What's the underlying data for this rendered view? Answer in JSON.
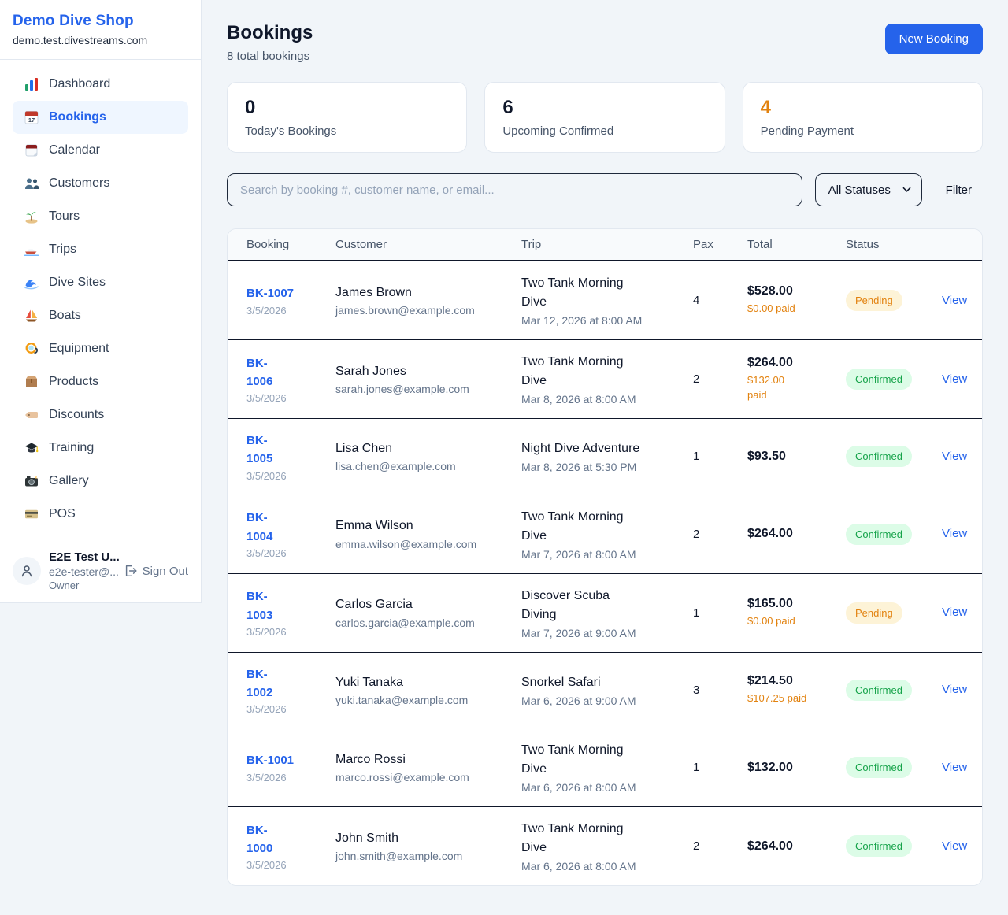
{
  "sidebar": {
    "shop_name": "Demo Dive Shop",
    "shop_domain": "demo.test.divestreams.com",
    "items": [
      {
        "label": "Dashboard",
        "icon": "bar-chart-icon",
        "active": false
      },
      {
        "label": "Bookings",
        "icon": "calendar-17-icon",
        "active": true
      },
      {
        "label": "Calendar",
        "icon": "tear-calendar-icon",
        "active": false
      },
      {
        "label": "Customers",
        "icon": "people-icon",
        "active": false
      },
      {
        "label": "Tours",
        "icon": "island-icon",
        "active": false
      },
      {
        "label": "Trips",
        "icon": "speedboat-icon",
        "active": false
      },
      {
        "label": "Dive Sites",
        "icon": "wave-icon",
        "active": false
      },
      {
        "label": "Boats",
        "icon": "sailboat-icon",
        "active": false
      },
      {
        "label": "Equipment",
        "icon": "dive-mask-icon",
        "active": false
      },
      {
        "label": "Products",
        "icon": "package-icon",
        "active": false
      },
      {
        "label": "Discounts",
        "icon": "tag-icon",
        "active": false
      },
      {
        "label": "Training",
        "icon": "graduation-cap-icon",
        "active": false
      },
      {
        "label": "Gallery",
        "icon": "camera-icon",
        "active": false
      },
      {
        "label": "POS",
        "icon": "credit-card-icon",
        "active": false
      }
    ],
    "user": {
      "name": "E2E Test U...",
      "email": "e2e-tester@...",
      "role": "Owner",
      "sign_out_label": "Sign Out"
    }
  },
  "header": {
    "title": "Bookings",
    "subtitle": "8 total bookings",
    "new_booking_label": "New Booking"
  },
  "stats": [
    {
      "value": "0",
      "label": "Today's Bookings",
      "highlight": "none"
    },
    {
      "value": "6",
      "label": "Upcoming Confirmed",
      "highlight": "none"
    },
    {
      "value": "4",
      "label": "Pending Payment",
      "highlight": "orange"
    }
  ],
  "filters": {
    "search_placeholder": "Search by booking #, customer name, or email...",
    "status_selected": "All Statuses",
    "filter_label": "Filter"
  },
  "table": {
    "columns": [
      "Booking",
      "Customer",
      "Trip",
      "Pax",
      "Total",
      "Status",
      ""
    ],
    "view_label": "View",
    "rows": [
      {
        "id": "BK-1007",
        "date": "3/5/2026",
        "customer": "James Brown",
        "email": "james.brown@example.com",
        "trip": "Two Tank Morning\nDive",
        "trip_time": "Mar 12, 2026 at 8:00 AM",
        "pax": "4",
        "total": "$528.00",
        "paid": "$0.00 paid",
        "status": "Pending"
      },
      {
        "id": "BK-\n1006",
        "date": "3/5/2026",
        "customer": "Sarah Jones",
        "email": "sarah.jones@example.com",
        "trip": "Two Tank Morning\nDive",
        "trip_time": "Mar 8, 2026 at 8:00 AM",
        "pax": "2",
        "total": "$264.00",
        "paid": "$132.00\npaid",
        "status": "Confirmed"
      },
      {
        "id": "BK-\n1005",
        "date": "3/5/2026",
        "customer": "Lisa Chen",
        "email": "lisa.chen@example.com",
        "trip": "Night Dive Adventure",
        "trip_time": "Mar 8, 2026 at 5:30 PM",
        "pax": "1",
        "total": "$93.50",
        "paid": "",
        "status": "Confirmed"
      },
      {
        "id": "BK-\n1004",
        "date": "3/5/2026",
        "customer": "Emma Wilson",
        "email": "emma.wilson@example.com",
        "trip": "Two Tank Morning\nDive",
        "trip_time": "Mar 7, 2026 at 8:00 AM",
        "pax": "2",
        "total": "$264.00",
        "paid": "",
        "status": "Confirmed"
      },
      {
        "id": "BK-\n1003",
        "date": "3/5/2026",
        "customer": "Carlos Garcia",
        "email": "carlos.garcia@example.com",
        "trip": "Discover Scuba\nDiving",
        "trip_time": "Mar 7, 2026 at 9:00 AM",
        "pax": "1",
        "total": "$165.00",
        "paid": "$0.00 paid",
        "status": "Pending"
      },
      {
        "id": "BK-\n1002",
        "date": "3/5/2026",
        "customer": "Yuki Tanaka",
        "email": "yuki.tanaka@example.com",
        "trip": "Snorkel Safari",
        "trip_time": "Mar 6, 2026 at 9:00 AM",
        "pax": "3",
        "total": "$214.50",
        "paid": "$107.25 paid",
        "status": "Confirmed"
      },
      {
        "id": "BK-1001",
        "date": "3/5/2026",
        "customer": "Marco Rossi",
        "email": "marco.rossi@example.com",
        "trip": "Two Tank Morning\nDive",
        "trip_time": "Mar 6, 2026 at 8:00 AM",
        "pax": "1",
        "total": "$132.00",
        "paid": "",
        "status": "Confirmed"
      },
      {
        "id": "BK-\n1000",
        "date": "3/5/2026",
        "customer": "John Smith",
        "email": "john.smith@example.com",
        "trip": "Two Tank Morning\nDive",
        "trip_time": "Mar 6, 2026 at 8:00 AM",
        "pax": "2",
        "total": "$264.00",
        "paid": "",
        "status": "Confirmed"
      }
    ]
  },
  "colors": {
    "accent": "#2563eb",
    "page_background": "#f1f5f9",
    "pending_text": "#e2820f",
    "pending_bg": "#fdf3d7",
    "confirmed_text": "#16a34a",
    "confirmed_bg": "#dcfce7",
    "paid_text": "#e2820f",
    "row_divider": "#0f172a"
  }
}
